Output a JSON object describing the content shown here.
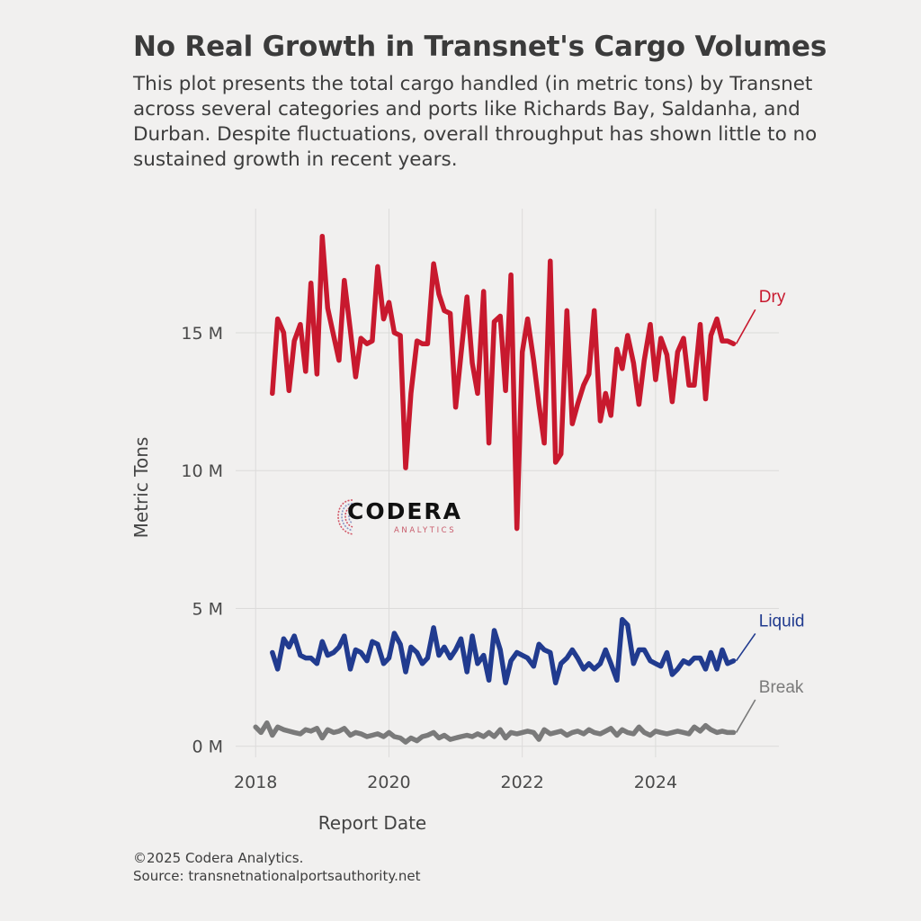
{
  "title": "No Real Growth in Transnet's Cargo Volumes",
  "subtitle": "This plot presents the total cargo handled (in metric tons) by Transnet across several categories and ports like Richards Bay, Saldanha, and Durban. Despite fluctuations, overall throughput has shown little to no sustained growth in recent years.",
  "footer": {
    "copyright": "©2025 Codera Analytics.",
    "source": "Source: transnetnationalportsauthority.net"
  },
  "logo": {
    "word": "CODERA",
    "sub": "ANALYTICS"
  },
  "colors": {
    "dry": "#c8192e",
    "liquid": "#213b8f",
    "break": "#7a7a7a",
    "background": "#f1f0ef",
    "grid": "#dcdbda"
  },
  "chart_data": {
    "type": "line",
    "title": "No Real Growth in Transnet's Cargo Volumes",
    "xlabel": "Report Date",
    "ylabel": "Metric Tons",
    "xlim": [
      2017.7,
      2025.85
    ],
    "ylim": [
      -0.4,
      19.5
    ],
    "x_ticks": [
      2018,
      2020,
      2022,
      2024
    ],
    "x_tick_labels": [
      "2018",
      "2020",
      "2022",
      "2024"
    ],
    "y_ticks": [
      0,
      5,
      10,
      15
    ],
    "y_tick_labels": [
      "0 M",
      "5 M",
      "10 M",
      "15 M"
    ],
    "grid": true,
    "legend": "direct labels at line ends",
    "series": [
      {
        "name": "Dry",
        "label_at": [
          2025.55,
          16.1
        ],
        "x": [
          2018.25,
          2018.33,
          2018.42,
          2018.5,
          2018.58,
          2018.67,
          2018.75,
          2018.83,
          2018.92,
          2019.0,
          2019.08,
          2019.17,
          2019.25,
          2019.33,
          2019.42,
          2019.5,
          2019.58,
          2019.67,
          2019.75,
          2019.83,
          2019.92,
          2020.0,
          2020.08,
          2020.17,
          2020.25,
          2020.33,
          2020.42,
          2020.5,
          2020.58,
          2020.67,
          2020.75,
          2020.83,
          2020.92,
          2021.0,
          2021.08,
          2021.17,
          2021.25,
          2021.33,
          2021.42,
          2021.5,
          2021.58,
          2021.67,
          2021.75,
          2021.83,
          2021.92,
          2022.0,
          2022.08,
          2022.17,
          2022.25,
          2022.33,
          2022.42,
          2022.5,
          2022.58,
          2022.67,
          2022.75,
          2022.83,
          2022.92,
          2023.0,
          2023.08,
          2023.17,
          2023.25,
          2023.33,
          2023.42,
          2023.5,
          2023.58,
          2023.67,
          2023.75,
          2023.83,
          2023.92,
          2024.0,
          2024.08,
          2024.17,
          2024.25,
          2024.33,
          2024.42,
          2024.5,
          2024.58,
          2024.67,
          2024.75,
          2024.83,
          2024.92,
          2025.0,
          2025.08,
          2025.17
        ],
        "y": [
          12.8,
          15.5,
          15.0,
          12.9,
          14.7,
          15.3,
          13.6,
          16.8,
          13.5,
          18.5,
          15.9,
          14.9,
          14.0,
          16.9,
          15.1,
          13.4,
          14.8,
          14.6,
          14.7,
          17.4,
          15.5,
          16.1,
          15.0,
          14.9,
          10.1,
          12.8,
          14.7,
          14.6,
          14.6,
          17.5,
          16.4,
          15.8,
          15.7,
          12.3,
          14.2,
          16.3,
          13.9,
          12.8,
          16.5,
          11.0,
          15.4,
          15.6,
          12.9,
          17.1,
          7.9,
          14.3,
          15.5,
          14.0,
          12.4,
          11.0,
          17.6,
          10.3,
          10.6,
          15.8,
          11.7,
          12.4,
          13.1,
          13.5,
          15.8,
          11.8,
          12.8,
          12.0,
          14.4,
          13.7,
          14.9,
          13.9,
          12.4,
          14.0,
          15.3,
          13.3,
          14.8,
          14.2,
          12.5,
          14.3,
          14.8,
          13.1,
          13.1,
          15.3,
          12.6,
          14.9,
          15.5,
          14.7,
          14.7,
          14.6
        ]
      },
      {
        "name": "Liquid",
        "label_at": [
          2025.55,
          4.35
        ],
        "x": [
          2018.25,
          2018.33,
          2018.42,
          2018.5,
          2018.58,
          2018.67,
          2018.75,
          2018.83,
          2018.92,
          2019.0,
          2019.08,
          2019.17,
          2019.25,
          2019.33,
          2019.42,
          2019.5,
          2019.58,
          2019.67,
          2019.75,
          2019.83,
          2019.92,
          2020.0,
          2020.08,
          2020.17,
          2020.25,
          2020.33,
          2020.42,
          2020.5,
          2020.58,
          2020.67,
          2020.75,
          2020.83,
          2020.92,
          2021.0,
          2021.08,
          2021.17,
          2021.25,
          2021.33,
          2021.42,
          2021.5,
          2021.58,
          2021.67,
          2021.75,
          2021.83,
          2021.92,
          2022.0,
          2022.08,
          2022.17,
          2022.25,
          2022.33,
          2022.42,
          2022.5,
          2022.58,
          2022.67,
          2022.75,
          2022.83,
          2022.92,
          2023.0,
          2023.08,
          2023.17,
          2023.25,
          2023.33,
          2023.42,
          2023.5,
          2023.58,
          2023.67,
          2023.75,
          2023.83,
          2023.92,
          2024.0,
          2024.08,
          2024.17,
          2024.25,
          2024.33,
          2024.42,
          2024.5,
          2024.58,
          2024.67,
          2024.75,
          2024.83,
          2024.92,
          2025.0,
          2025.08,
          2025.17
        ],
        "y": [
          3.4,
          2.8,
          3.9,
          3.6,
          4.0,
          3.3,
          3.2,
          3.2,
          3.0,
          3.8,
          3.3,
          3.4,
          3.6,
          4.0,
          2.8,
          3.5,
          3.4,
          3.1,
          3.8,
          3.7,
          3.0,
          3.2,
          4.1,
          3.7,
          2.7,
          3.6,
          3.4,
          3.0,
          3.2,
          4.3,
          3.3,
          3.6,
          3.2,
          3.5,
          3.9,
          2.7,
          4.0,
          3.0,
          3.3,
          2.4,
          4.2,
          3.5,
          2.3,
          3.1,
          3.4,
          3.3,
          3.2,
          2.9,
          3.7,
          3.5,
          3.4,
          2.3,
          3.0,
          3.2,
          3.5,
          3.2,
          2.8,
          3.0,
          2.8,
          3.0,
          3.5,
          3.0,
          2.4,
          4.6,
          4.4,
          3.0,
          3.5,
          3.5,
          3.1,
          3.0,
          2.9,
          3.4,
          2.6,
          2.8,
          3.1,
          3.0,
          3.2,
          3.2,
          2.8,
          3.4,
          2.8,
          3.5,
          3.0,
          3.1
        ]
      },
      {
        "name": "Break",
        "label_at": [
          2025.55,
          1.95
        ],
        "x": [
          2018.0,
          2018.08,
          2018.17,
          2018.25,
          2018.33,
          2018.42,
          2018.5,
          2018.58,
          2018.67,
          2018.75,
          2018.83,
          2018.92,
          2019.0,
          2019.08,
          2019.17,
          2019.25,
          2019.33,
          2019.42,
          2019.5,
          2019.58,
          2019.67,
          2019.75,
          2019.83,
          2019.92,
          2020.0,
          2020.08,
          2020.17,
          2020.25,
          2020.33,
          2020.42,
          2020.5,
          2020.58,
          2020.67,
          2020.75,
          2020.83,
          2020.92,
          2021.0,
          2021.08,
          2021.17,
          2021.25,
          2021.33,
          2021.42,
          2021.5,
          2021.58,
          2021.67,
          2021.75,
          2021.83,
          2021.92,
          2022.0,
          2022.08,
          2022.17,
          2022.25,
          2022.33,
          2022.42,
          2022.5,
          2022.58,
          2022.67,
          2022.75,
          2022.83,
          2022.92,
          2023.0,
          2023.08,
          2023.17,
          2023.25,
          2023.33,
          2023.42,
          2023.5,
          2023.58,
          2023.67,
          2023.75,
          2023.83,
          2023.92,
          2024.0,
          2024.08,
          2024.17,
          2024.25,
          2024.33,
          2024.42,
          2024.5,
          2024.58,
          2024.67,
          2024.75,
          2024.83,
          2024.92,
          2025.0,
          2025.08,
          2025.17
        ],
        "y": [
          0.7,
          0.5,
          0.85,
          0.4,
          0.7,
          0.6,
          0.55,
          0.5,
          0.45,
          0.6,
          0.55,
          0.65,
          0.3,
          0.6,
          0.5,
          0.55,
          0.65,
          0.4,
          0.5,
          0.45,
          0.35,
          0.4,
          0.45,
          0.35,
          0.5,
          0.35,
          0.3,
          0.15,
          0.3,
          0.2,
          0.35,
          0.4,
          0.5,
          0.3,
          0.4,
          0.25,
          0.3,
          0.35,
          0.4,
          0.35,
          0.45,
          0.35,
          0.5,
          0.35,
          0.6,
          0.3,
          0.5,
          0.45,
          0.5,
          0.55,
          0.5,
          0.25,
          0.6,
          0.45,
          0.5,
          0.55,
          0.4,
          0.5,
          0.55,
          0.45,
          0.6,
          0.5,
          0.45,
          0.55,
          0.65,
          0.4,
          0.6,
          0.5,
          0.45,
          0.7,
          0.5,
          0.4,
          0.55,
          0.5,
          0.45,
          0.5,
          0.55,
          0.5,
          0.45,
          0.7,
          0.55,
          0.75,
          0.6,
          0.5,
          0.55,
          0.5,
          0.5
        ]
      }
    ]
  }
}
